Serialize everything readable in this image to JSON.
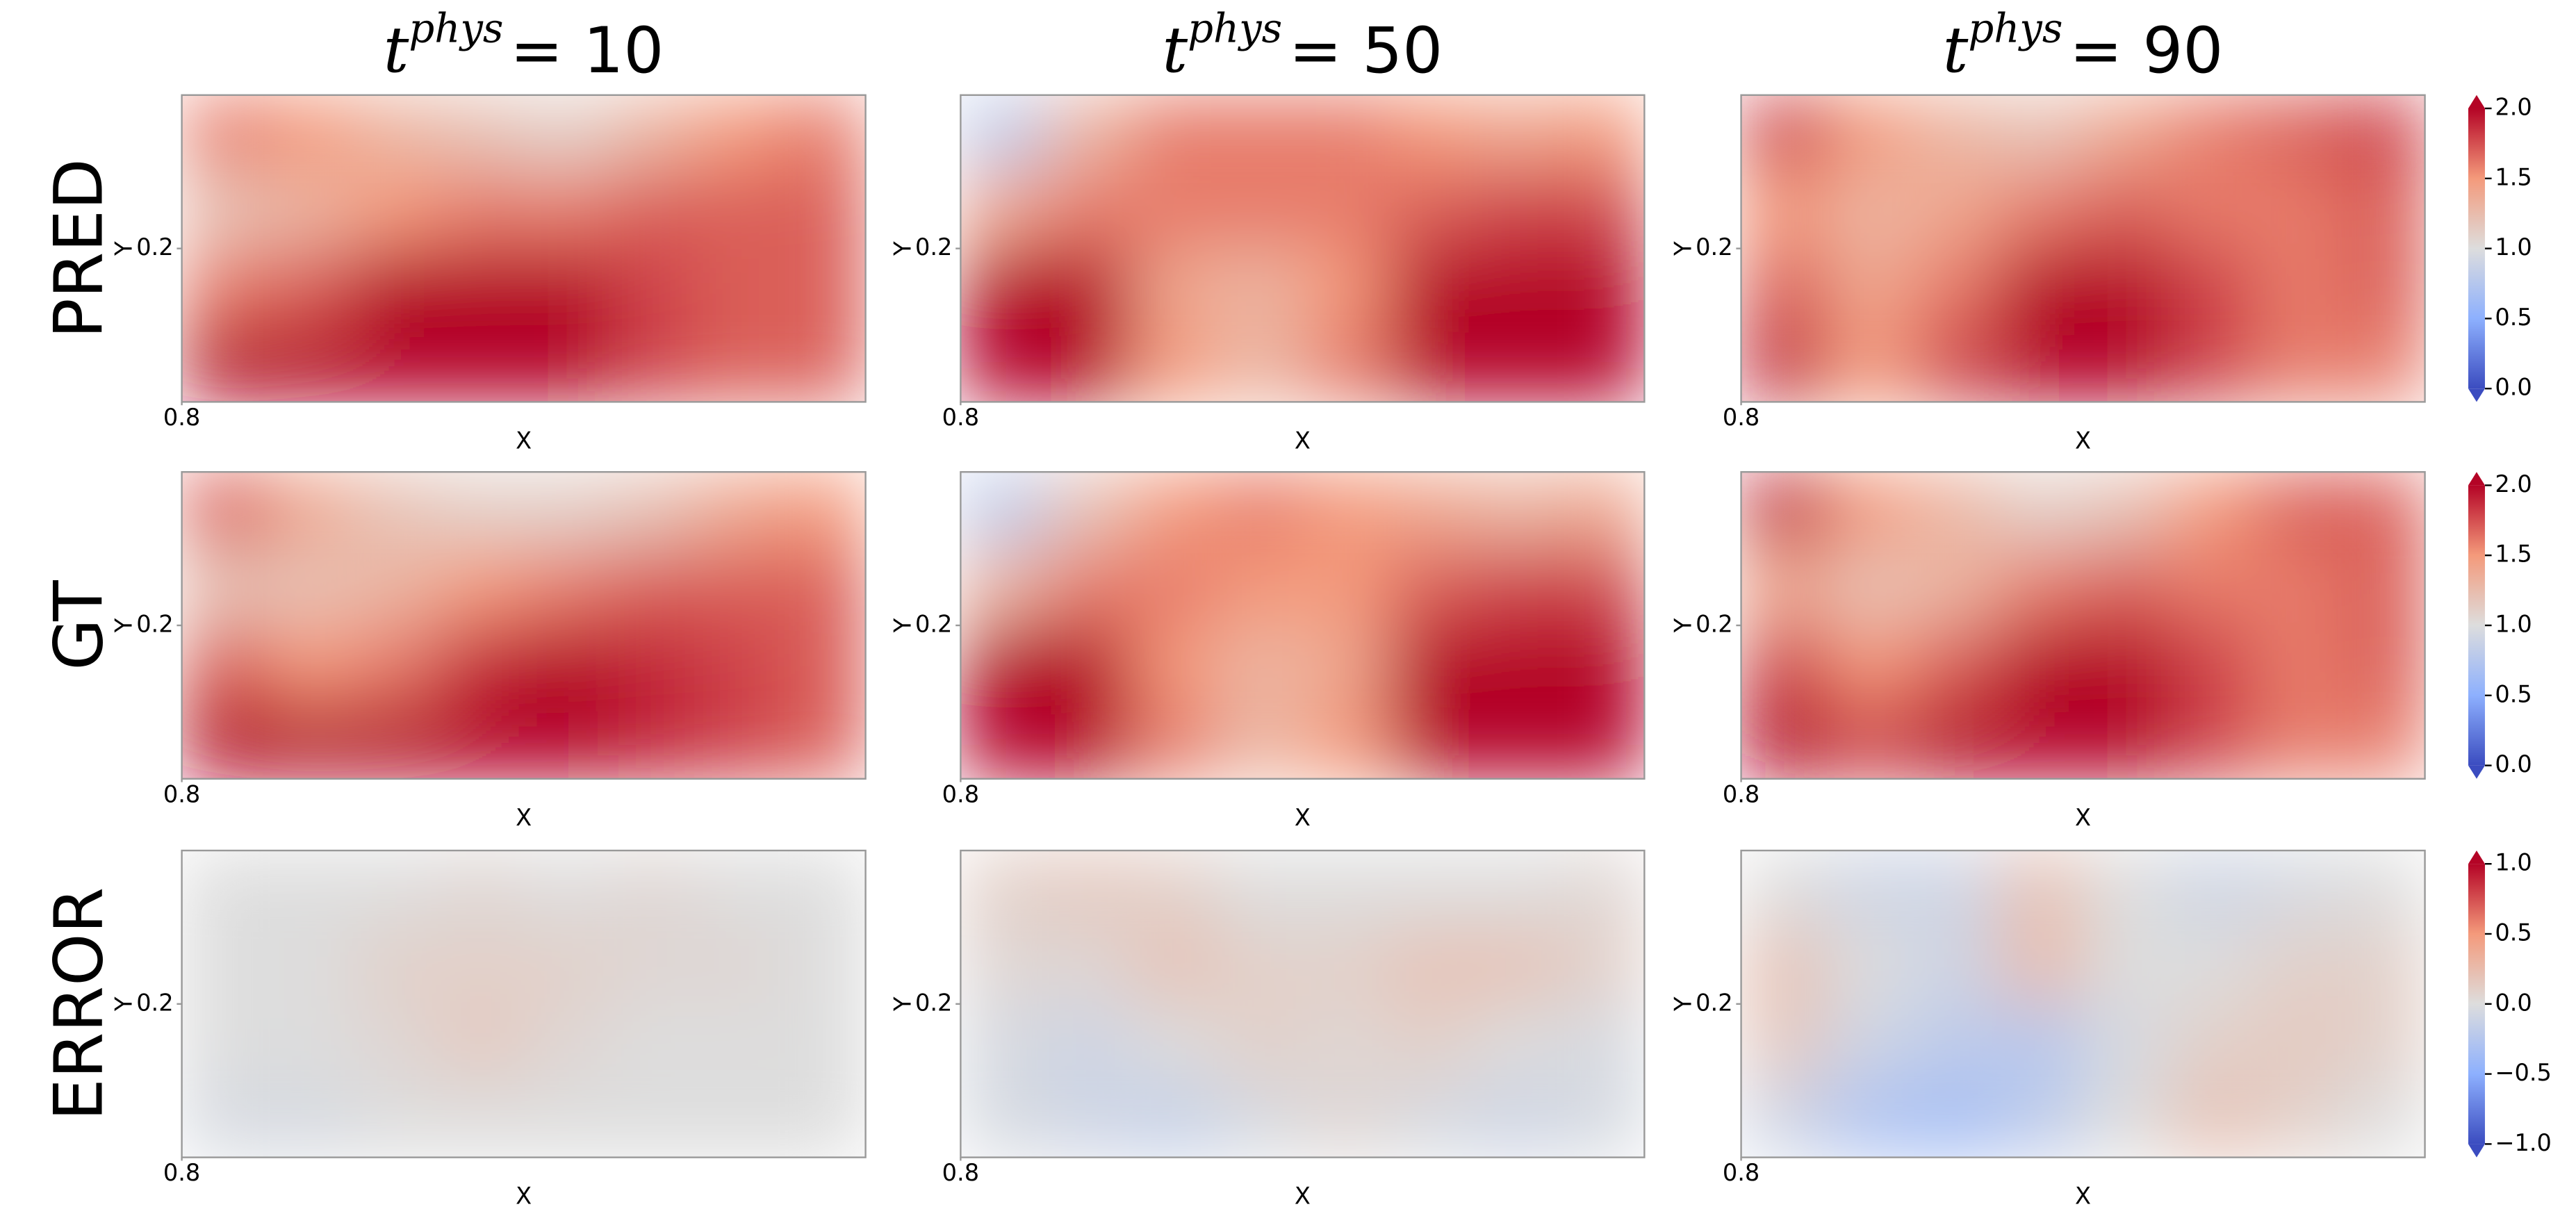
{
  "columns": [
    {
      "title_base": "t",
      "title_sup": "phys",
      "title_rest": "= 10"
    },
    {
      "title_base": "t",
      "title_sup": "phys",
      "title_rest": "= 50"
    },
    {
      "title_base": "t",
      "title_sup": "phys",
      "title_rest": "= 90"
    }
  ],
  "rows": [
    {
      "label": "PRED",
      "clim": [
        0,
        2
      ],
      "cticks": [
        {
          "value": 0,
          "label": "0.0"
        },
        {
          "value": 0.5,
          "label": "0.5"
        },
        {
          "value": 1,
          "label": "1.0"
        },
        {
          "value": 1.5,
          "label": "1.5"
        },
        {
          "value": 2,
          "label": "2.0"
        }
      ]
    },
    {
      "label": "GT",
      "clim": [
        0,
        2
      ],
      "cticks": [
        {
          "value": 0,
          "label": "0.0"
        },
        {
          "value": 0.5,
          "label": "0.5"
        },
        {
          "value": 1,
          "label": "1.0"
        },
        {
          "value": 1.5,
          "label": "1.5"
        },
        {
          "value": 2,
          "label": "2.0"
        }
      ]
    },
    {
      "label": "ERROR",
      "clim": [
        -1,
        1
      ],
      "cticks": [
        {
          "value": -1,
          "label": "−1.0"
        },
        {
          "value": -0.5,
          "label": "−0.5"
        },
        {
          "value": 0,
          "label": "0.0"
        },
        {
          "value": 0.5,
          "label": "0.5"
        },
        {
          "value": 1,
          "label": "1.0"
        }
      ]
    }
  ],
  "chart_data": [
    {
      "type": "heatmap",
      "xlabel": "X",
      "ylabel": "Y",
      "xlim": [
        0.8,
        1.7
      ],
      "ylim": [
        0,
        0.4
      ],
      "xticks": [
        0.8
      ],
      "yticks": [
        0.2
      ],
      "values": [
        [
          1.6,
          1.5,
          1.3,
          1.2,
          1.1,
          1.3,
          1.5,
          1.6
        ],
        [
          1.2,
          1.3,
          1.5,
          1.6,
          1.6,
          1.7,
          1.7,
          1.7
        ],
        [
          1.6,
          1.7,
          2.2,
          2.3,
          2.2,
          1.8,
          1.7,
          1.7
        ],
        [
          2.2,
          2.2,
          2.3,
          2.3,
          2.2,
          1.8,
          1.7,
          1.7
        ]
      ]
    },
    {
      "type": "heatmap",
      "xlabel": "X",
      "ylabel": "Y",
      "xlim": [
        0.8,
        1.7
      ],
      "ylim": [
        0,
        0.4
      ],
      "xticks": [
        0.8
      ],
      "yticks": [
        0.2
      ],
      "values": [
        [
          0.8,
          1.3,
          1.6,
          1.6,
          1.6,
          1.5,
          1.4,
          1.5
        ],
        [
          1.4,
          1.6,
          1.6,
          1.6,
          1.6,
          1.7,
          1.8,
          1.8
        ],
        [
          2.2,
          2.2,
          1.4,
          1.3,
          1.5,
          2.0,
          2.2,
          2.2
        ],
        [
          2.2,
          2.2,
          1.5,
          1.3,
          1.6,
          2.2,
          2.2,
          2.2
        ]
      ]
    },
    {
      "type": "heatmap",
      "xlabel": "X",
      "ylabel": "Y",
      "xlim": [
        0.8,
        1.7
      ],
      "ylim": [
        0,
        0.4
      ],
      "xticks": [
        0.8
      ],
      "yticks": [
        0.2
      ],
      "values": [
        [
          1.8,
          1.5,
          1.3,
          1.2,
          1.4,
          1.6,
          1.7,
          1.8
        ],
        [
          1.5,
          1.3,
          1.4,
          1.6,
          1.7,
          1.6,
          1.6,
          1.7
        ],
        [
          1.7,
          1.4,
          1.6,
          2.2,
          2.2,
          1.8,
          1.6,
          1.7
        ],
        [
          1.9,
          1.5,
          1.8,
          2.2,
          2.2,
          1.8,
          1.6,
          1.6
        ]
      ]
    },
    {
      "type": "heatmap",
      "xlabel": "X",
      "ylabel": "Y",
      "xlim": [
        0.8,
        1.7
      ],
      "ylim": [
        0,
        0.4
      ],
      "xticks": [
        0.8
      ],
      "yticks": [
        0.2
      ],
      "values": [
        [
          1.7,
          1.4,
          1.2,
          1.1,
          1.1,
          1.2,
          1.4,
          1.5
        ],
        [
          1.2,
          1.2,
          1.3,
          1.5,
          1.6,
          1.7,
          1.7,
          1.7
        ],
        [
          1.7,
          1.5,
          1.6,
          1.9,
          2.1,
          1.9,
          1.8,
          1.7
        ],
        [
          2.2,
          2.2,
          2.2,
          2.2,
          2.2,
          1.9,
          1.8,
          1.7
        ]
      ]
    },
    {
      "type": "heatmap",
      "xlabel": "X",
      "ylabel": "Y",
      "xlim": [
        0.8,
        1.7
      ],
      "ylim": [
        0,
        0.4
      ],
      "xticks": [
        0.8
      ],
      "yticks": [
        0.2
      ],
      "values": [
        [
          0.8,
          1.2,
          1.5,
          1.6,
          1.5,
          1.4,
          1.3,
          1.4
        ],
        [
          1.3,
          1.6,
          1.6,
          1.5,
          1.5,
          1.7,
          1.8,
          1.8
        ],
        [
          2.2,
          2.2,
          1.5,
          1.3,
          1.4,
          2.0,
          2.2,
          2.2
        ],
        [
          2.2,
          2.2,
          1.6,
          1.3,
          1.5,
          2.2,
          2.2,
          2.2
        ]
      ]
    },
    {
      "type": "heatmap",
      "xlabel": "X",
      "ylabel": "Y",
      "xlim": [
        0.8,
        1.7
      ],
      "ylim": [
        0,
        0.4
      ],
      "xticks": [
        0.8
      ],
      "yticks": [
        0.2
      ],
      "values": [
        [
          1.9,
          1.5,
          1.3,
          1.1,
          1.2,
          1.5,
          1.7,
          1.7
        ],
        [
          1.4,
          1.2,
          1.3,
          1.6,
          1.7,
          1.6,
          1.6,
          1.7
        ],
        [
          1.8,
          1.5,
          1.7,
          2.2,
          2.2,
          1.8,
          1.6,
          1.7
        ],
        [
          2.0,
          1.8,
          2.0,
          2.2,
          2.2,
          1.8,
          1.6,
          1.6
        ]
      ]
    },
    {
      "type": "heatmap",
      "xlabel": "X",
      "ylabel": "Y",
      "xlim": [
        0.8,
        1.7
      ],
      "ylim": [
        0,
        0.4
      ],
      "xticks": [
        0.8
      ],
      "yticks": [
        0.2
      ],
      "values": [
        [
          0,
          0,
          0,
          0.05,
          0,
          0.05,
          0,
          0
        ],
        [
          0,
          0,
          0.1,
          0.1,
          0.1,
          0.05,
          0.05,
          0
        ],
        [
          0,
          0,
          0.05,
          0.15,
          0.05,
          0,
          0,
          0
        ],
        [
          -0.05,
          -0.05,
          0,
          0,
          0,
          0,
          0,
          0
        ]
      ]
    },
    {
      "type": "heatmap",
      "xlabel": "X",
      "ylabel": "Y",
      "xlim": [
        0.8,
        1.7
      ],
      "ylim": [
        0,
        0.4
      ],
      "xticks": [
        0.8
      ],
      "yticks": [
        0.2
      ],
      "values": [
        [
          0.1,
          0.15,
          0.1,
          0,
          0,
          0,
          0,
          0.05
        ],
        [
          0.05,
          0.05,
          0.2,
          0.1,
          0.1,
          0.2,
          0.2,
          0.1
        ],
        [
          -0.05,
          -0.1,
          0,
          0.1,
          0.05,
          0.1,
          0,
          -0.05
        ],
        [
          -0.05,
          -0.1,
          -0.15,
          -0.05,
          0.05,
          -0.05,
          -0.1,
          -0.05
        ]
      ]
    },
    {
      "type": "heatmap",
      "xlabel": "X",
      "ylabel": "Y",
      "xlim": [
        0.8,
        1.7
      ],
      "ylim": [
        0,
        0.4
      ],
      "xticks": [
        0.8
      ],
      "yticks": [
        0.2
      ],
      "values": [
        [
          0,
          -0.1,
          -0.1,
          0.2,
          0,
          -0.1,
          -0.05,
          0
        ],
        [
          0.2,
          0,
          -0.1,
          0.25,
          0,
          0,
          0.1,
          0.1
        ],
        [
          0.15,
          -0.1,
          -0.2,
          -0.25,
          -0.05,
          0.1,
          0.15,
          0.1
        ],
        [
          -0.1,
          -0.3,
          -0.35,
          -0.2,
          0,
          0.2,
          0.1,
          0
        ]
      ]
    }
  ]
}
